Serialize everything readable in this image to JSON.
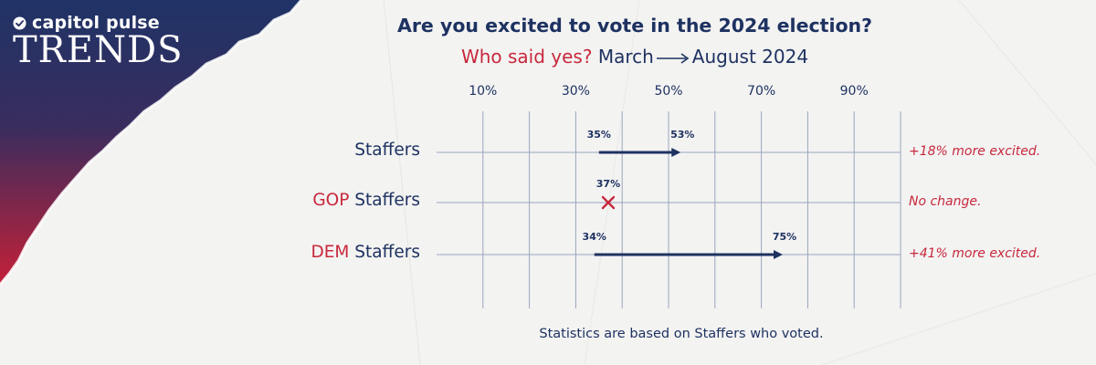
{
  "brand": {
    "name": "capitol pulse",
    "section": "TRENDS"
  },
  "title": "Are you excited to vote in the 2024 election?",
  "subtitle": {
    "prefix": "Who said yes?",
    "start": "March",
    "end": "August 2024"
  },
  "footnote": "Statistics are based on Staffers who voted.",
  "colors": {
    "navy": "#1e3261",
    "red": "#c8283c",
    "grid": "#9aa6bd"
  },
  "chart_data": {
    "type": "dumbbell",
    "title": "Are you excited to vote in the 2024 election?",
    "subtitle": "Who said yes? March → August 2024",
    "x_ticks": [
      "10%",
      "30%",
      "50%",
      "70%",
      "90%"
    ],
    "x_tick_values": [
      10,
      30,
      50,
      70,
      90
    ],
    "xlim": [
      0,
      100
    ],
    "grid": true,
    "rows": [
      {
        "label_prefix": "",
        "label_main": "Staffers",
        "march": 35,
        "august": 53,
        "march_label": "35%",
        "august_label": "53%",
        "note": "+18% more excited."
      },
      {
        "label_prefix": "GOP",
        "label_main": " Staffers",
        "march": 37,
        "august": 37,
        "march_label": "37%",
        "august_label": "",
        "note": "No change."
      },
      {
        "label_prefix": "DEM",
        "label_main": " Staffers",
        "march": 34,
        "august": 75,
        "march_label": "34%",
        "august_label": "75%",
        "note": "+41% more excited."
      }
    ]
  }
}
